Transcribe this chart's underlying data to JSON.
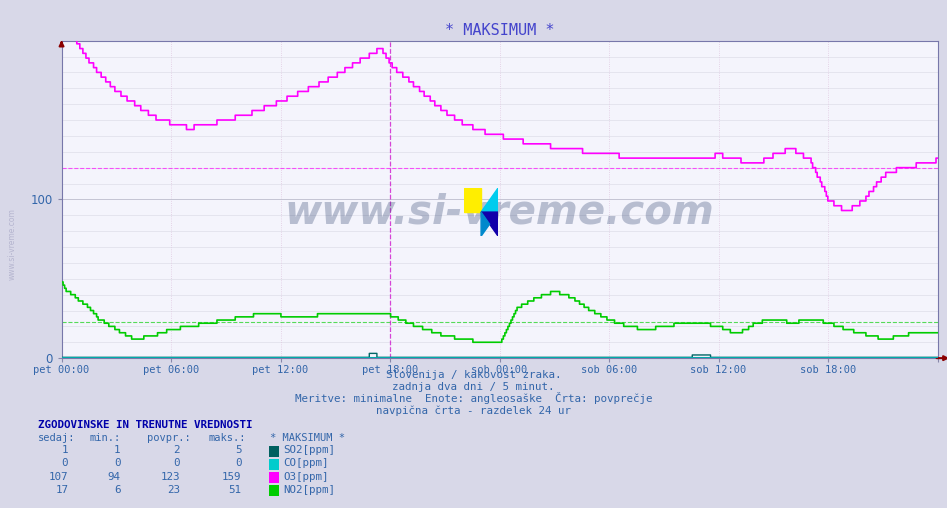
{
  "title": "* MAKSIMUM *",
  "title_color": "#4444cc",
  "bg_color": "#d8d8e8",
  "plot_bg_color": "#f4f4fc",
  "text_color": "#3366aa",
  "watermark": "www.si-vreme.com",
  "subtitle1": "Slovenija / kakovost zraka.",
  "subtitle2": "zadnja dva dni / 5 minut.",
  "subtitle3": "Meritve: minimalne  Enote: angleosaške  Črta: povprečje",
  "subtitle4": "navpična črta - razdelek 24 ur",
  "table_header": "ZGODOVINSKE IN TRENUTNE VREDNOSTI",
  "col_headers": [
    "sedaj:",
    "min.:",
    "povpr.:",
    "maks.:",
    "* MAKSIMUM *"
  ],
  "table_data": [
    [
      1,
      1,
      2,
      5,
      "SO2[ppm]",
      "#006060"
    ],
    [
      0,
      0,
      0,
      0,
      "CO[ppm]",
      "#00cccc"
    ],
    [
      107,
      94,
      123,
      159,
      "O3[ppm]",
      "#ff00ff"
    ],
    [
      17,
      6,
      23,
      51,
      "NO2[ppm]",
      "#00cc00"
    ]
  ],
  "ylim": [
    0,
    200
  ],
  "yticks": [
    0,
    100
  ],
  "n_points": 576,
  "hours_total": 48,
  "ref_line_O3": 120,
  "ref_line_NO2": 23,
  "colors": {
    "SO2": "#006666",
    "CO": "#00aaaa",
    "O3": "#ff00ff",
    "NO2": "#00cc00"
  },
  "tick_positions": [
    0,
    6,
    12,
    18,
    24,
    30,
    36,
    42,
    48
  ],
  "tick_labels": [
    "pet 00:00",
    "pet 06:00",
    "pet 12:00",
    "pet 18:00",
    "sob 00:00",
    "sob 06:00",
    "sob 12:00",
    "sob 18:00",
    ""
  ]
}
